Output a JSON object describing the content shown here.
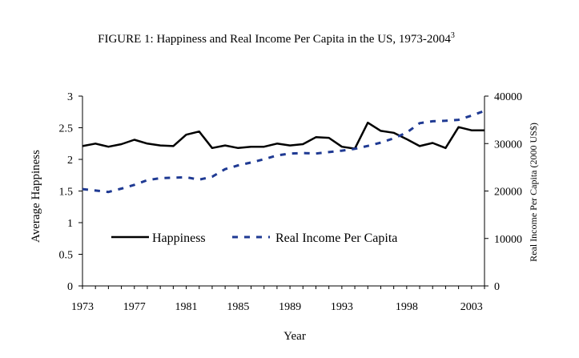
{
  "chart_data": {
    "type": "line",
    "title": "FIGURE 1: Happiness and Real Income Per Capita in the US, 1973-2004",
    "title_superscript": "3",
    "xlabel": "Year",
    "ylabel_left": "Average Happiness",
    "ylabel_right": "Real Income Per Capita (2000 US$)",
    "x_tick_labels": [
      "1973",
      "1977",
      "1981",
      "1985",
      "1989",
      "1993",
      "1998",
      "2003"
    ],
    "y_left_ticks": [
      "0",
      "0.5",
      "1",
      "1.5",
      "2",
      "2.5",
      "3"
    ],
    "y_right_ticks": [
      "0",
      "10000",
      "20000",
      "30000",
      "40000"
    ],
    "ylim_left": [
      0,
      3
    ],
    "ylim_right": [
      0,
      40000
    ],
    "xlim": [
      1973,
      2004
    ],
    "grid": false,
    "legend_position": "center-left",
    "x": [
      1973,
      1974,
      1975,
      1976,
      1977,
      1978,
      1979,
      1980,
      1981,
      1982,
      1983,
      1984,
      1985,
      1986,
      1987,
      1988,
      1989,
      1990,
      1991,
      1992,
      1993,
      1994,
      1995,
      1996,
      1997,
      1998,
      1999,
      2000,
      2001,
      2002,
      2003,
      2004
    ],
    "series": [
      {
        "name": "Happiness",
        "axis": "left",
        "style": "solid",
        "color": "#000000",
        "values": [
          2.21,
          2.25,
          2.2,
          2.24,
          2.31,
          2.25,
          2.22,
          2.21,
          2.39,
          2.44,
          2.18,
          2.22,
          2.18,
          2.2,
          2.2,
          2.25,
          2.22,
          2.24,
          2.35,
          2.34,
          2.2,
          2.17,
          2.58,
          2.45,
          2.42,
          2.32,
          2.21,
          2.26,
          2.18,
          2.51,
          2.46,
          2.46
        ]
      },
      {
        "name": "Real Income Per Capita",
        "axis": "right",
        "style": "dashed",
        "color": "#1f3a93",
        "values": [
          20400,
          20100,
          19800,
          20500,
          21300,
          22300,
          22700,
          22800,
          22900,
          22400,
          23000,
          24600,
          25400,
          26000,
          26700,
          27500,
          27900,
          28000,
          27900,
          28200,
          28500,
          28900,
          29500,
          30200,
          31100,
          32300,
          34300,
          34700,
          34800,
          35000,
          35900,
          36900
        ]
      }
    ]
  }
}
